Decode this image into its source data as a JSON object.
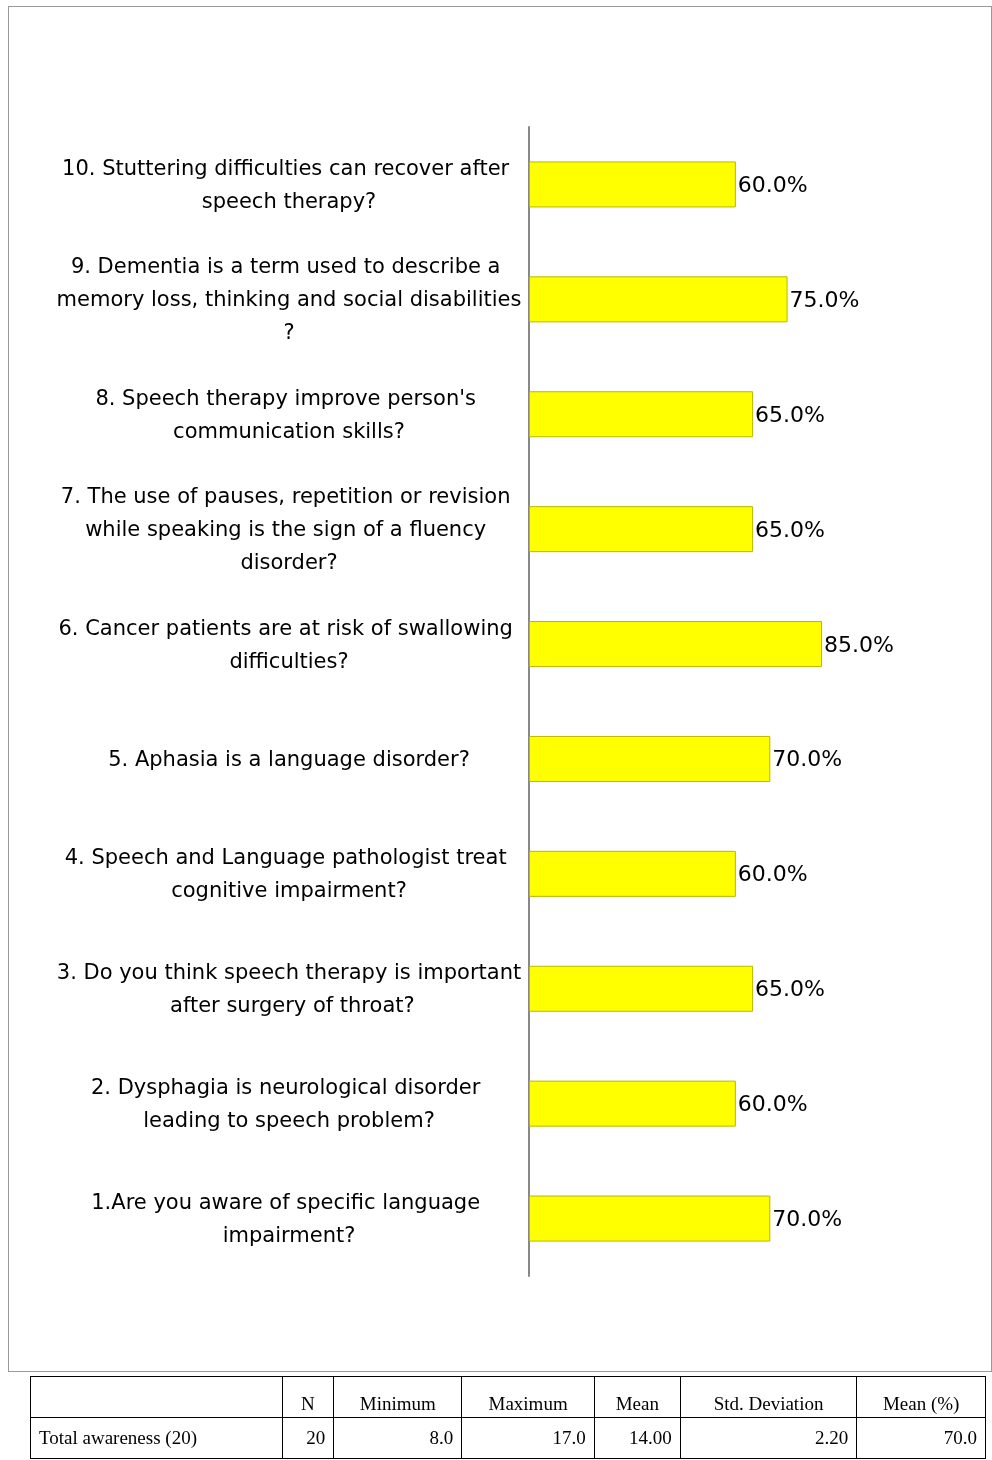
{
  "chart_data": [
    {
      "type": "bar",
      "orientation": "horizontal",
      "categories": [
        "10. Stuttering difficulties can recover after speech therapy?",
        "9. Dementia is a term used to describe a memory loss, thinking and social disabilities?",
        "8. Speech therapy improve person's communication skills?",
        "7. The use of pauses, repetition or revision while speaking is the sign of a fluency disorder?",
        "6. Cancer patients are at risk of swallowing difficulties?",
        "5. Aphasia is a language disorder?",
        "4. Speech and Language pathologist treat cognitive impairment?",
        "3. Do you think speech therapy is important after surgery of throat?",
        "2. Dysphagia is neurological disorder leading to speech problem?",
        "1.Are you aware of specific language impairment?"
      ],
      "values": [
        60,
        75,
        65,
        65,
        85,
        70,
        60,
        65,
        60,
        70
      ],
      "value_labels": [
        "60.0%",
        "75.0%",
        "65.0%",
        "65.0%",
        "85.0%",
        "70.0%",
        "60.0%",
        "65.0%",
        "60.0%",
        "70.0%"
      ],
      "color": "#ffff00",
      "grid": false
    },
    {
      "type": "other",
      "categories": [
        null,
        "N",
        "Minimum",
        "Maximum",
        "Mean",
        "Std. Deviation",
        "Mean (%)"
      ],
      "annotations": [
        "Total awareness (20)",
        "20",
        "8.0",
        "17.0",
        "14.00",
        "2.20",
        "70.0"
      ]
    }
  ]
}
